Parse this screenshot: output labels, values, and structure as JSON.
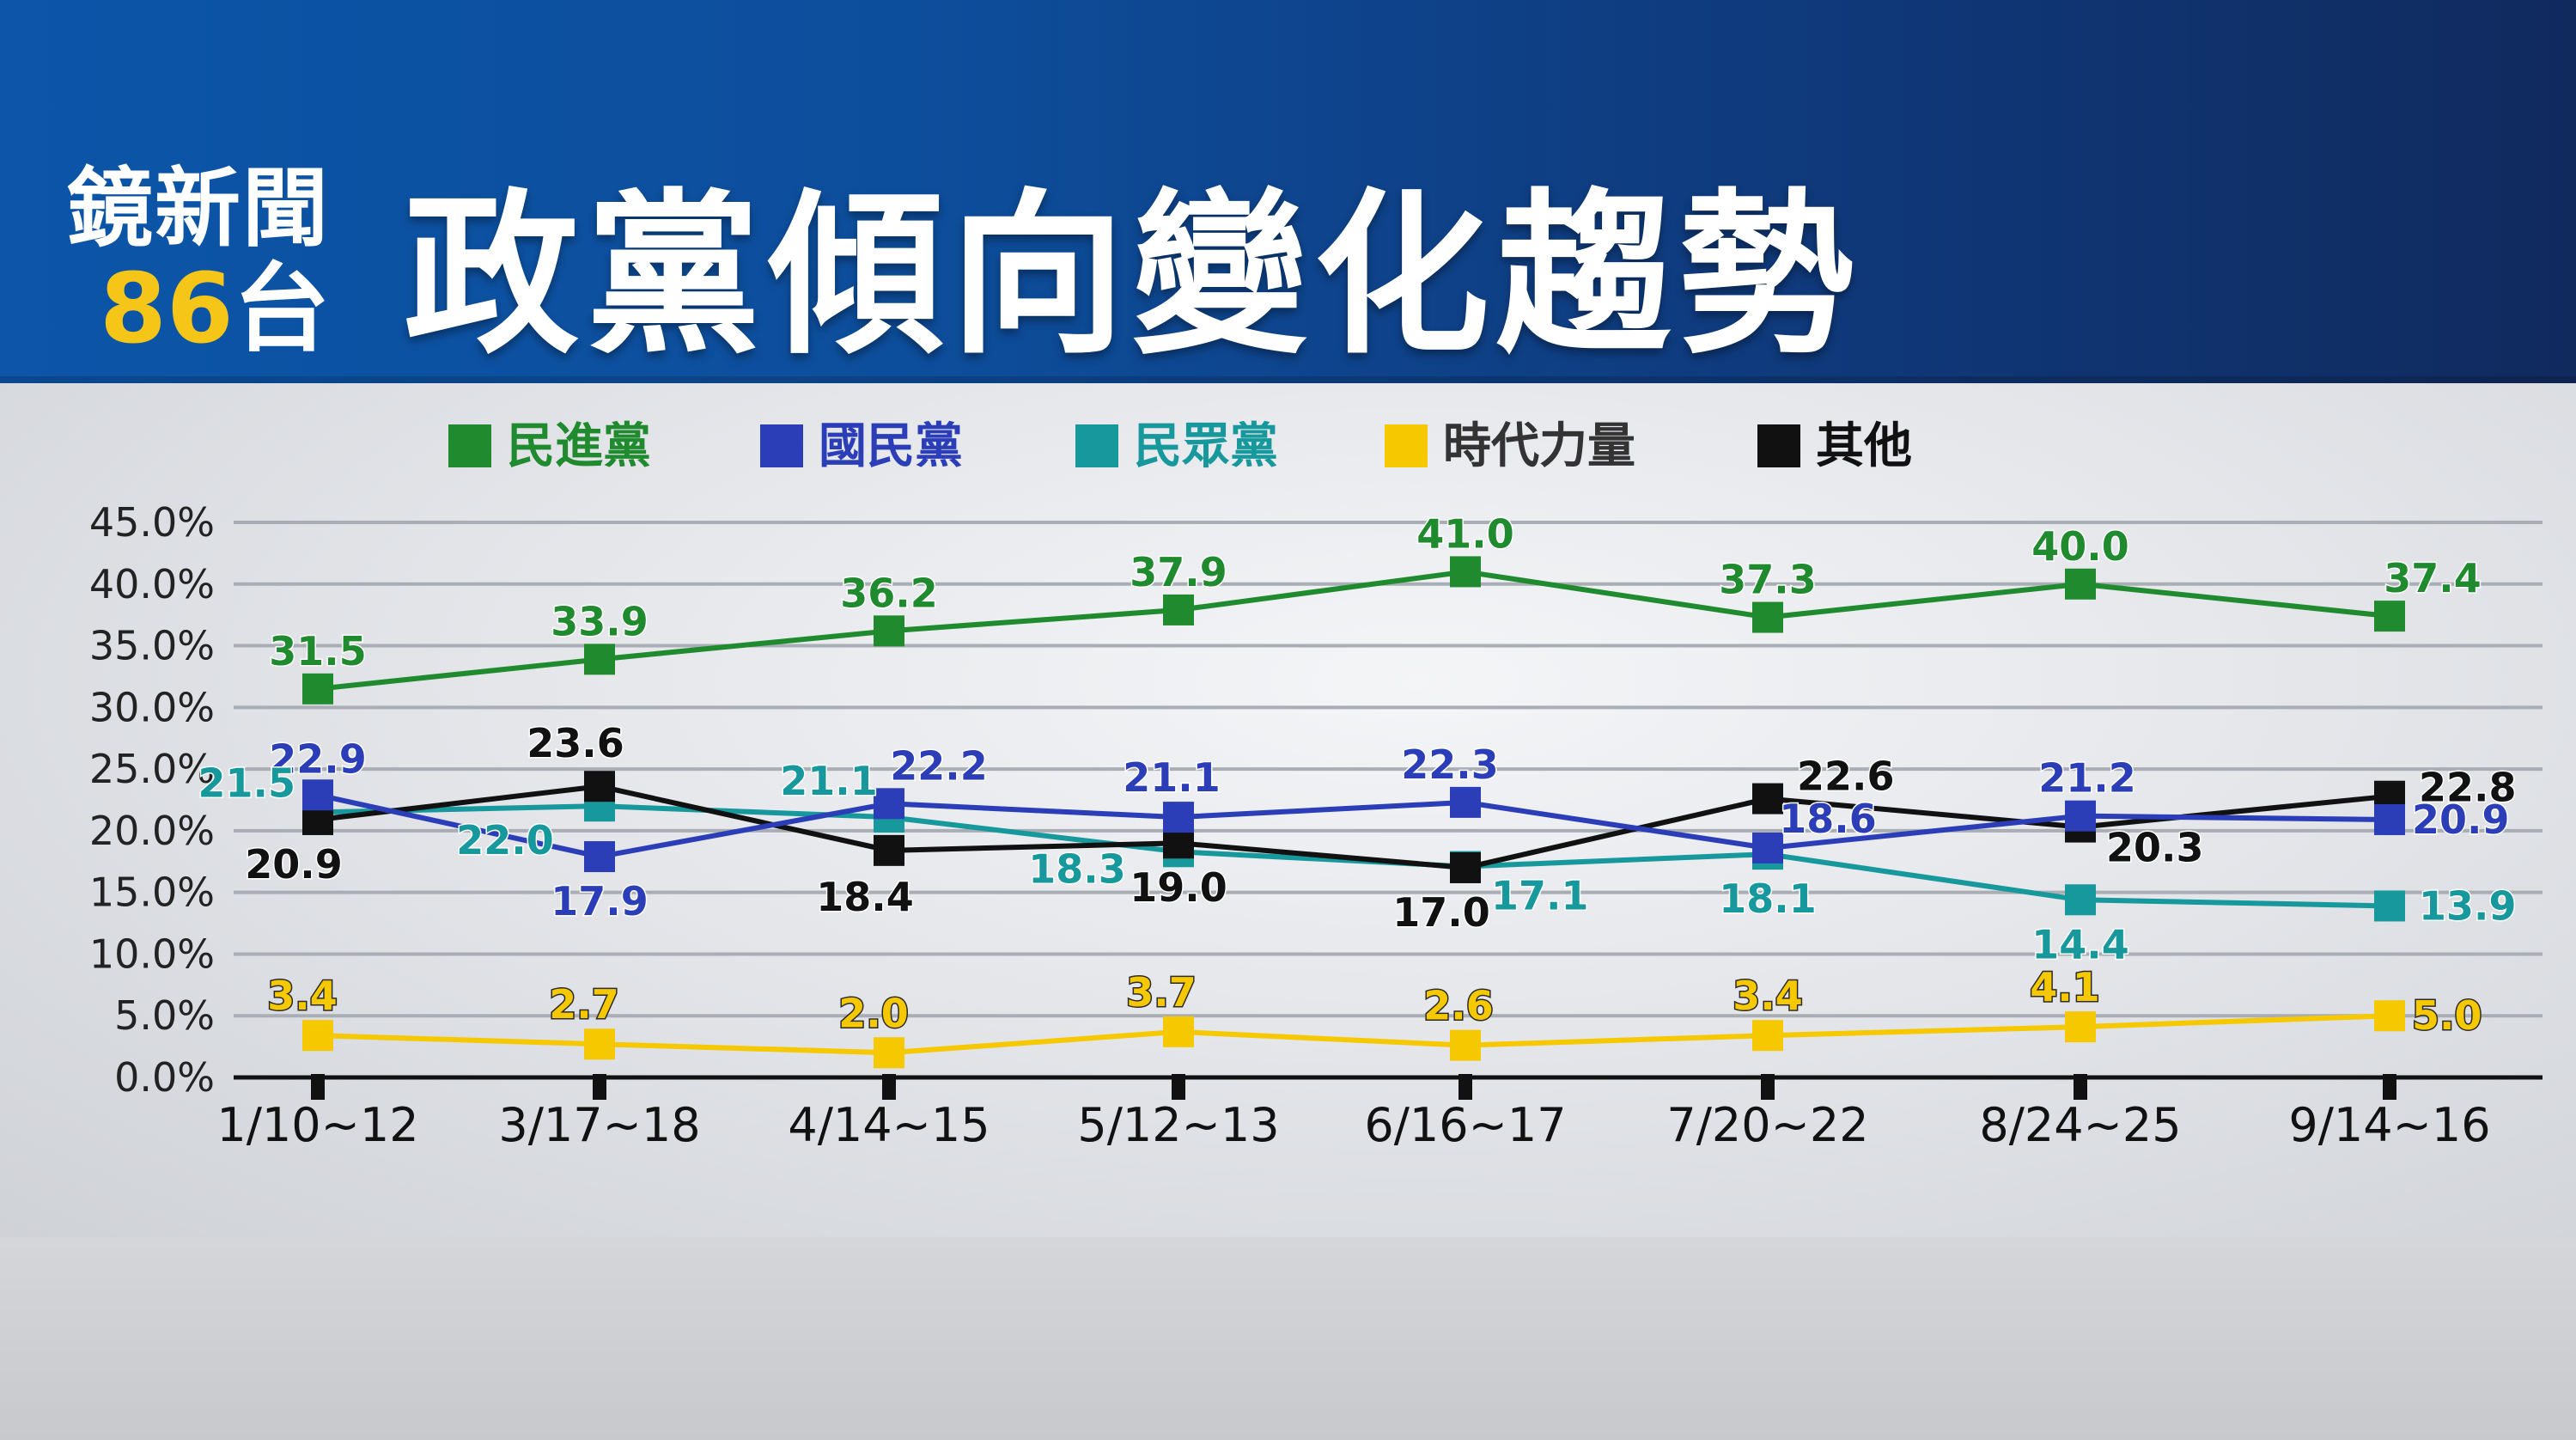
{
  "header": {
    "logo_line1": "鏡新聞",
    "logo_line2_number": "86",
    "logo_line2_suffix": "台",
    "title": "政黨傾向變化趨勢"
  },
  "chart_data": {
    "type": "line",
    "categories": [
      "1/10~12",
      "3/17~18",
      "4/14~15",
      "5/12~13",
      "6/16~17",
      "7/20~22",
      "8/24~25",
      "9/14~16"
    ],
    "ylim": [
      0,
      45
    ],
    "yticks": [
      0,
      5,
      10,
      15,
      20,
      25,
      30,
      35,
      40,
      45
    ],
    "ytick_labels": [
      "0.0%",
      "5.0%",
      "10.0%",
      "15.0%",
      "20.0%",
      "25.0%",
      "30.0%",
      "35.0%",
      "40.0%",
      "45.0%"
    ],
    "grid": true,
    "legend_position": "top",
    "series": [
      {
        "name": "民進黨",
        "color": "#1f8a2e",
        "values": [
          31.5,
          33.9,
          36.2,
          37.9,
          41.0,
          37.3,
          40.0,
          37.4
        ]
      },
      {
        "name": "國民黨",
        "color": "#2b3eb8",
        "values": [
          22.9,
          17.9,
          22.2,
          21.1,
          22.3,
          18.6,
          21.2,
          20.9
        ]
      },
      {
        "name": "民眾黨",
        "color": "#16989c",
        "values": [
          21.5,
          22.0,
          21.1,
          18.3,
          17.1,
          18.1,
          14.4,
          13.9
        ]
      },
      {
        "name": "時代力量",
        "color": "#f5c800",
        "values": [
          3.4,
          2.7,
          2.0,
          3.7,
          2.6,
          3.4,
          4.1,
          5.0
        ]
      },
      {
        "name": "其他",
        "color": "#111111",
        "values": [
          20.9,
          23.6,
          18.4,
          19.0,
          17.0,
          22.6,
          20.3,
          22.8
        ]
      }
    ]
  }
}
